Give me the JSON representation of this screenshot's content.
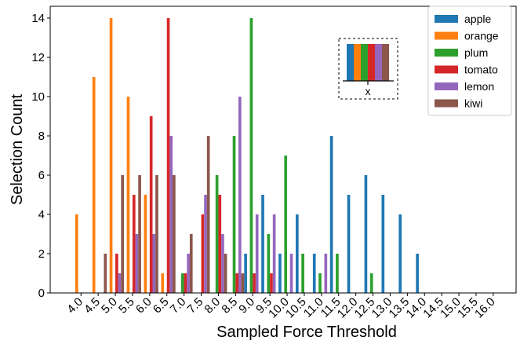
{
  "chart_data": {
    "type": "bar",
    "xlabel": "Sampled Force Threshold",
    "ylabel": "Selection Count",
    "ylim": [
      0,
      14.6
    ],
    "yticks": [
      0,
      2,
      4,
      6,
      8,
      10,
      12,
      14
    ],
    "categories": [
      "4.0",
      "4.5",
      "5.0",
      "5.5",
      "6.0",
      "6.5",
      "7.0",
      "7.5",
      "8.0",
      "8.5",
      "9.0",
      "9.5",
      "10.0",
      "10.5",
      "11.0",
      "11.5",
      "12.0",
      "12.5",
      "13.0",
      "13.5",
      "14.0",
      "14.5",
      "15.0",
      "15.5",
      "16.0"
    ],
    "grid": false,
    "legend_position": "top-right",
    "series": [
      {
        "name": "apple",
        "color": "#1f77b4",
        "values": [
          0,
          0,
          0,
          0,
          0,
          0,
          0,
          0,
          0,
          0,
          2,
          5,
          2,
          4,
          2,
          8,
          5,
          6,
          5,
          4,
          2,
          0,
          0,
          0,
          0
        ]
      },
      {
        "name": "orange",
        "color": "#ff7f0e",
        "values": [
          4,
          11,
          14,
          10,
          5,
          1,
          0,
          0,
          0,
          0,
          0,
          0,
          0,
          0,
          0,
          0,
          0,
          0,
          0,
          0,
          0,
          0,
          0,
          0,
          0
        ]
      },
      {
        "name": "plum",
        "color": "#2ca02c",
        "values": [
          0,
          0,
          0,
          0,
          0,
          0,
          1,
          0,
          6,
          8,
          14,
          3,
          7,
          2,
          1,
          2,
          0,
          1,
          0,
          0,
          0,
          0,
          0,
          0,
          0
        ]
      },
      {
        "name": "tomato",
        "color": "#d62728",
        "values": [
          0,
          0,
          2,
          5,
          9,
          14,
          1,
          4,
          5,
          1,
          1,
          1,
          0,
          0,
          0,
          0,
          0,
          0,
          0,
          0,
          0,
          0,
          0,
          0,
          0
        ]
      },
      {
        "name": "lemon",
        "color": "#9467bd",
        "values": [
          0,
          0,
          1,
          3,
          3,
          8,
          2,
          5,
          3,
          10,
          4,
          4,
          2,
          0,
          2,
          0,
          0,
          0,
          0,
          0,
          0,
          0,
          0,
          0,
          0
        ]
      },
      {
        "name": "kiwi",
        "color": "#8c564b",
        "values": [
          0,
          2,
          6,
          6,
          6,
          6,
          3,
          8,
          2,
          1,
          0,
          0,
          0,
          0,
          0,
          0,
          0,
          0,
          0,
          0,
          0,
          0,
          0,
          0,
          0
        ]
      }
    ],
    "inset_legend": {
      "label": "x"
    }
  }
}
